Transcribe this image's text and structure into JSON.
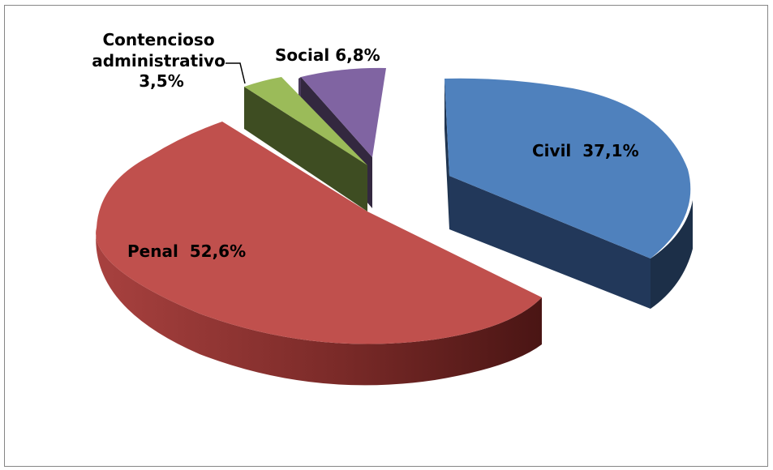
{
  "chart_data": {
    "type": "pie",
    "title": "",
    "slices": [
      {
        "label": "Civil",
        "percent_text": "37,1%",
        "value": 37.1,
        "color": "#4F81BD",
        "side_color": "#1F344F"
      },
      {
        "label": "Penal",
        "percent_text": "52,6%",
        "value": 52.6,
        "color": "#C0504D",
        "side_color": "#6E2322"
      },
      {
        "label": "Contencioso administrativo",
        "percent_text": "3,5%",
        "value": 3.5,
        "color": "#9BBB59",
        "side_color": "#3E4D22"
      },
      {
        "label": "Social",
        "percent_text": "6,8%",
        "value": 6.8,
        "color": "#8064A2",
        "side_color": "#33283F"
      }
    ],
    "legend": "none",
    "style": "3D exploded pie"
  }
}
